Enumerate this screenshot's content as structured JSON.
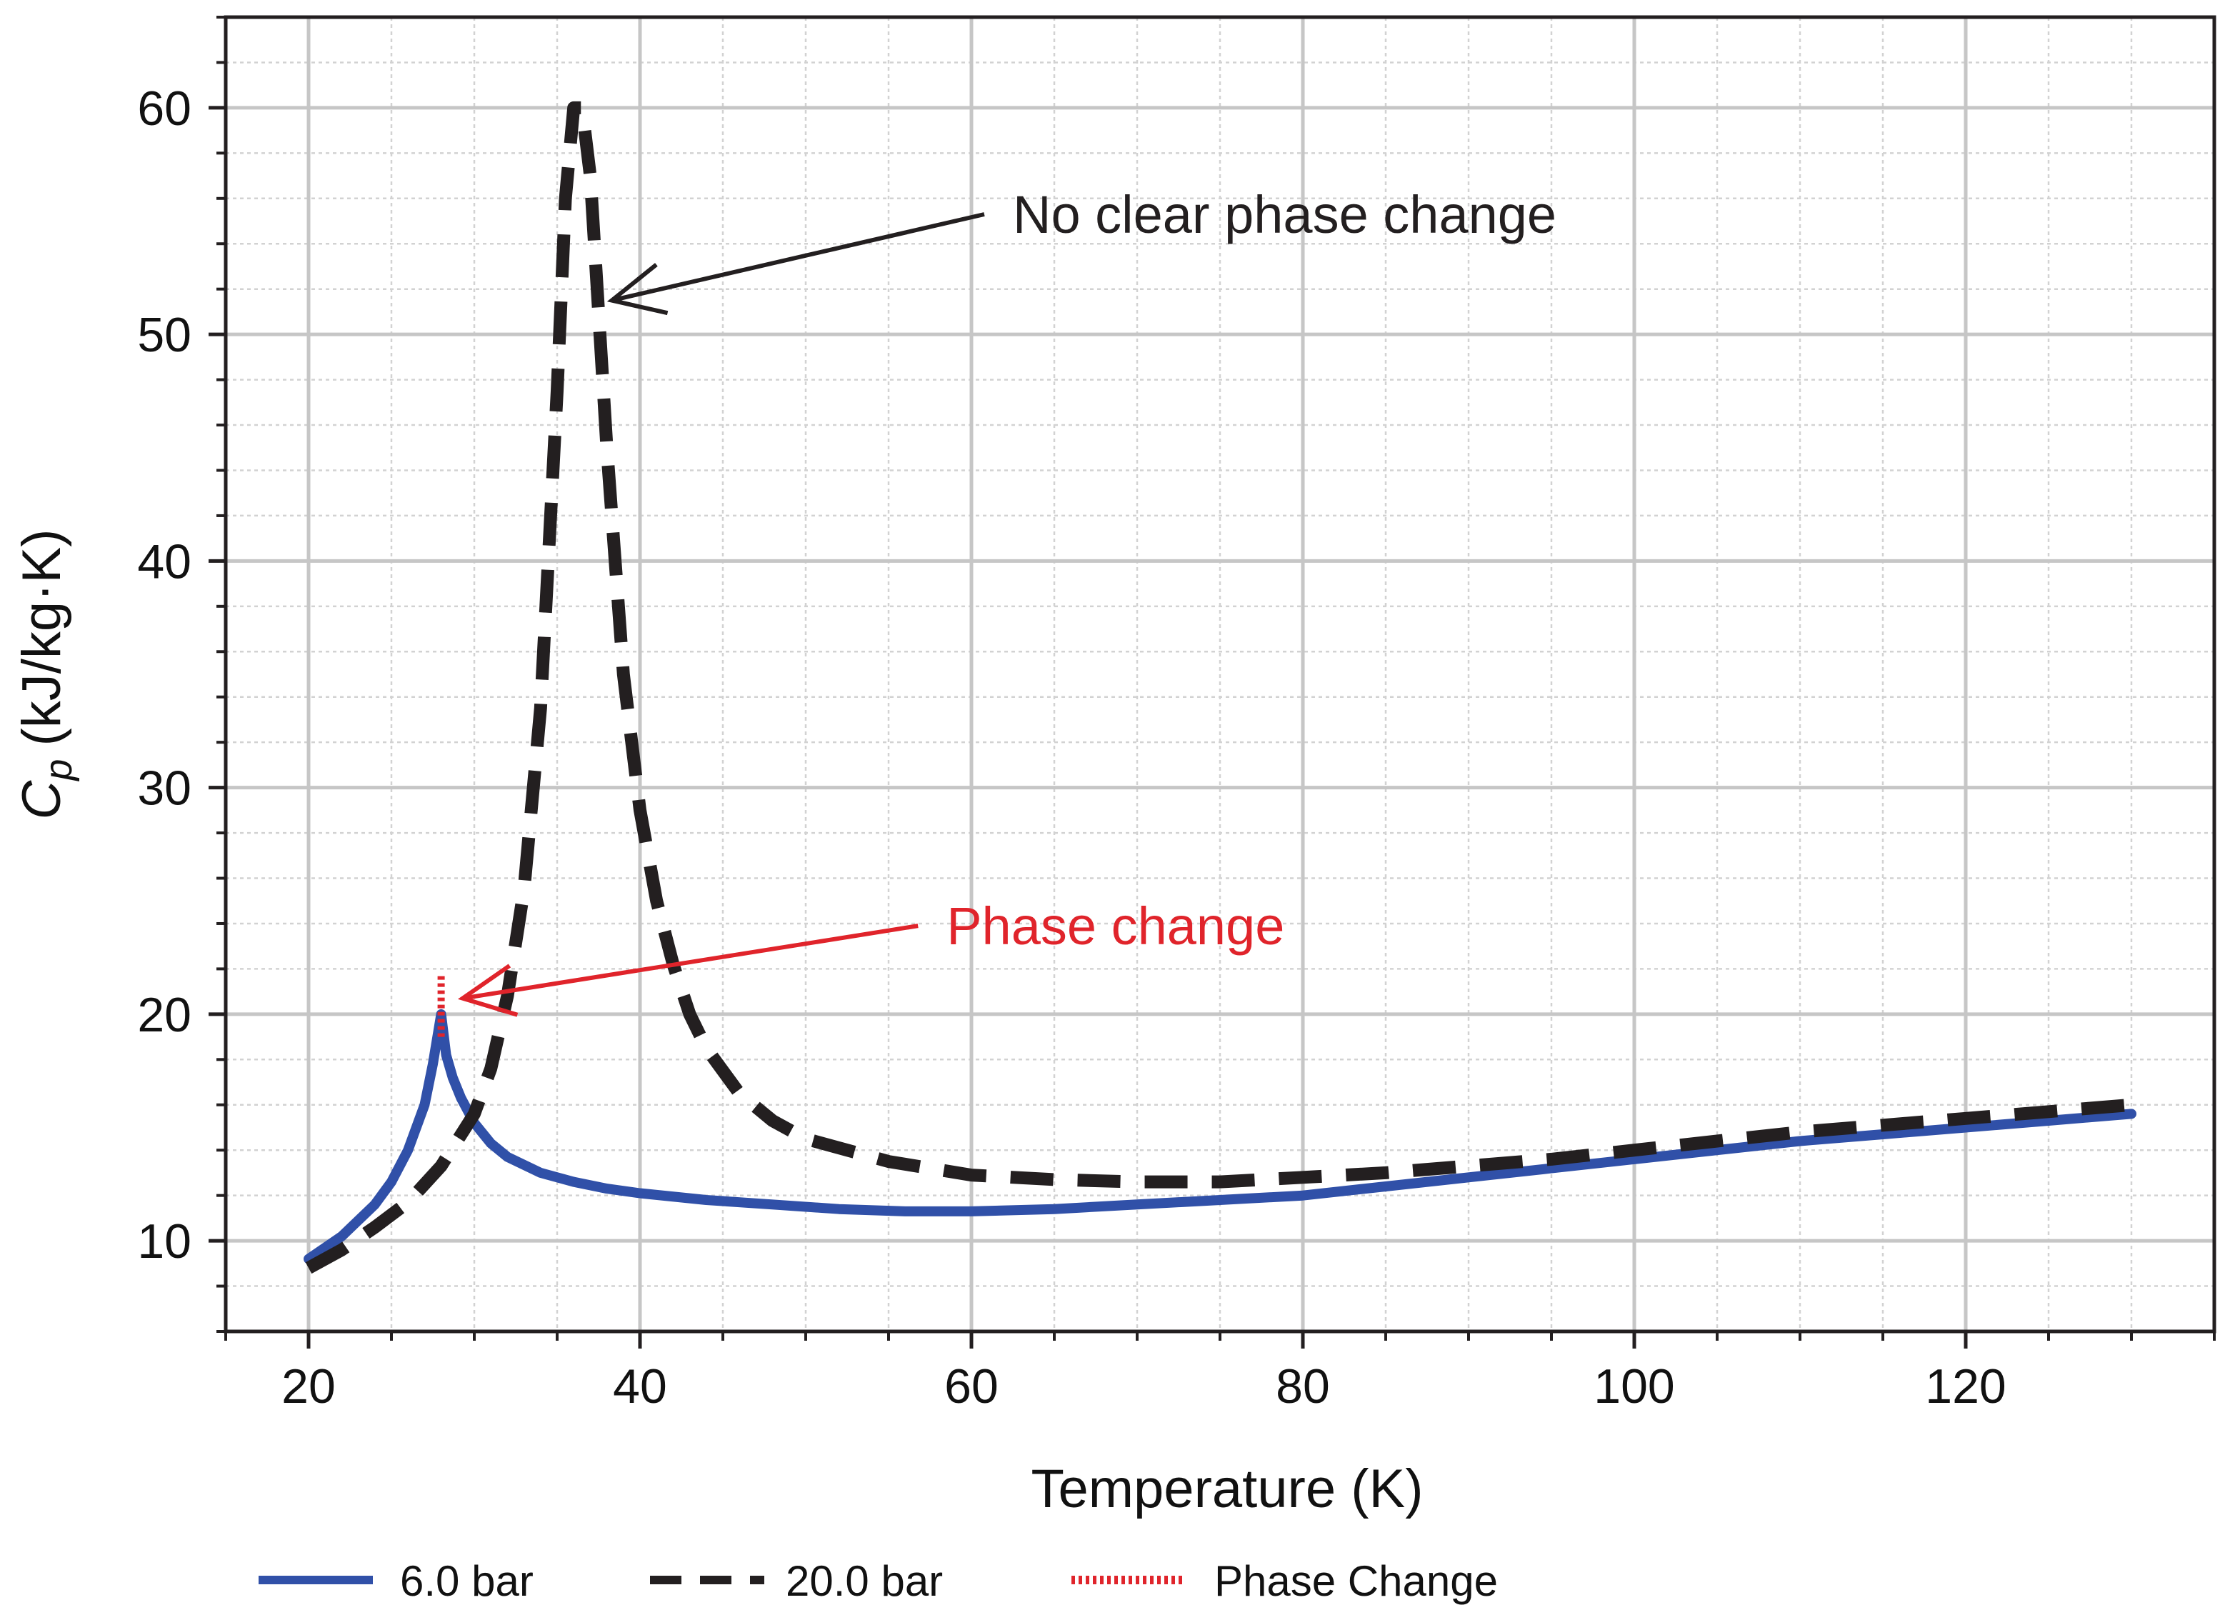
{
  "chart_data": {
    "type": "line",
    "title": "",
    "xlabel": "Temperature (K)",
    "ylabel_symbol": "C",
    "ylabel_subscript": "p",
    "ylabel_units": "(kJ/kg·K)",
    "xlim": [
      15,
      135
    ],
    "ylim": [
      6,
      64
    ],
    "x_ticks": [
      20,
      40,
      60,
      80,
      100,
      120
    ],
    "y_ticks": [
      10,
      20,
      30,
      40,
      50,
      60
    ],
    "x_tick_labels": [
      "20",
      "40",
      "60",
      "80",
      "100",
      "120"
    ],
    "y_tick_labels": [
      "10",
      "20",
      "30",
      "40",
      "50",
      "60"
    ],
    "grid": true,
    "minor_grid": true,
    "legend_position": "bottom",
    "series": [
      {
        "name": "6.0 bar",
        "style": "solid",
        "color": "#3050a8",
        "x": [
          20,
          22,
          24,
          25,
          26,
          27,
          27.5,
          28,
          28.3,
          28.7,
          29.2,
          30,
          31,
          32,
          34,
          36,
          38,
          40,
          44,
          48,
          52,
          56,
          60,
          65,
          70,
          75,
          80,
          85,
          90,
          95,
          100,
          105,
          110,
          115,
          120,
          125,
          130
        ],
        "y": [
          9.2,
          10.2,
          11.6,
          12.6,
          14.0,
          16.0,
          17.8,
          20.0,
          18.2,
          17.2,
          16.3,
          15.2,
          14.3,
          13.7,
          13.0,
          12.6,
          12.3,
          12.1,
          11.8,
          11.6,
          11.4,
          11.3,
          11.3,
          11.4,
          11.6,
          11.8,
          12.0,
          12.4,
          12.8,
          13.2,
          13.6,
          14.0,
          14.4,
          14.7,
          15.0,
          15.3,
          15.6
        ]
      },
      {
        "name": "20.0 bar",
        "style": "dashed",
        "color": "#231f20",
        "x": [
          20,
          22,
          24,
          26,
          28,
          30,
          31,
          32,
          33,
          34,
          35,
          35.5,
          36,
          36.5,
          37,
          37.5,
          38,
          39,
          40,
          41,
          42,
          43,
          44,
          46,
          48,
          50,
          55,
          60,
          65,
          70,
          75,
          80,
          85,
          90,
          95,
          100,
          105,
          110,
          115,
          120,
          125,
          130
        ],
        "y": [
          8.8,
          9.6,
          10.6,
          11.7,
          13.3,
          15.6,
          17.6,
          20.8,
          25.5,
          33.5,
          47.5,
          56.0,
          60.0,
          60.0,
          57.0,
          51.0,
          45.0,
          35.0,
          29.0,
          25.0,
          22.2,
          20.0,
          18.5,
          16.5,
          15.3,
          14.5,
          13.5,
          12.9,
          12.7,
          12.6,
          12.6,
          12.8,
          13.0,
          13.3,
          13.6,
          14.0,
          14.4,
          14.8,
          15.1,
          15.4,
          15.7,
          16.0
        ]
      },
      {
        "name": "Phase Change",
        "style": "dotted",
        "color": "#e0242b",
        "x": [
          28,
          28,
          28
        ],
        "y": [
          19.0,
          20.4,
          21.8
        ]
      }
    ],
    "annotations": [
      {
        "text": "No clear phase change",
        "color": "#231f20",
        "x": 62.5,
        "y": 55.3,
        "arrow_to_x": 38.3,
        "arrow_to_y": 51.5
      },
      {
        "text": "Phase change",
        "color": "#e0242b",
        "x": 58.5,
        "y": 23.9,
        "arrow_to_x": 29.3,
        "arrow_to_y": 20.7
      }
    ]
  }
}
